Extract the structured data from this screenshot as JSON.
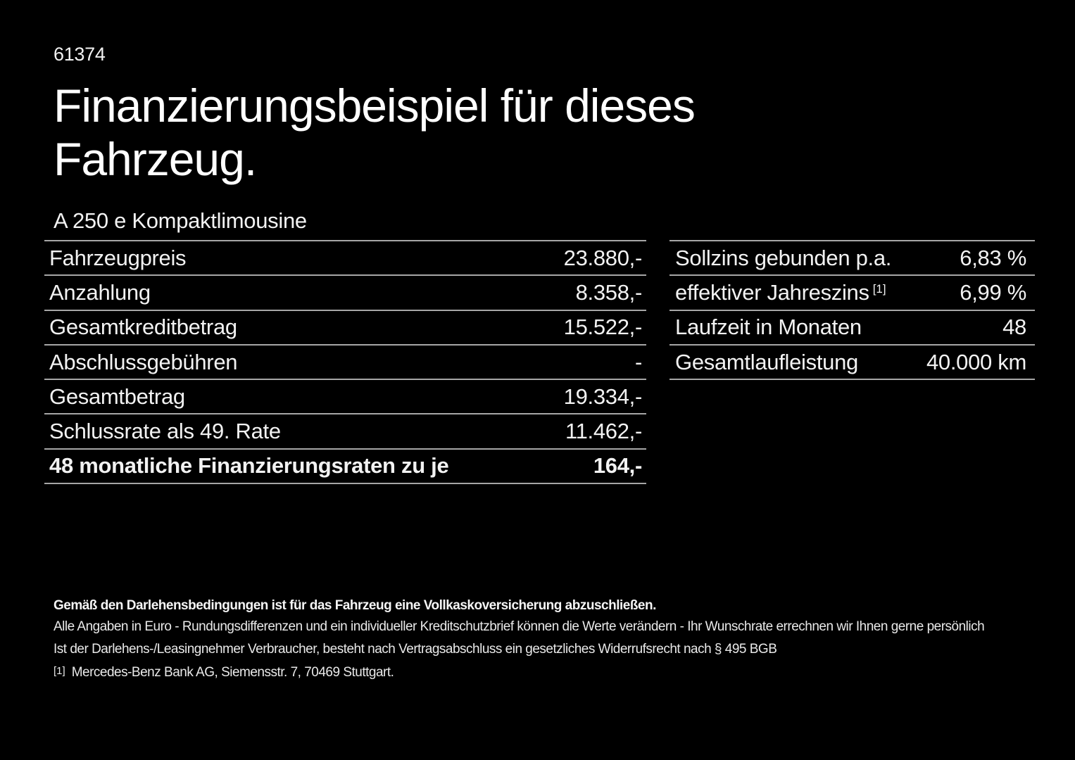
{
  "page": {
    "background_color": "#000000",
    "text_color": "#f2f2f2",
    "divider_color": "#a6a6a6"
  },
  "header": {
    "doc_number": "61374",
    "title": "Finanzierungsbeispiel für dieses Fahrzeug.",
    "vehicle_model": "A 250 e Kompaktlimousine"
  },
  "left_table": {
    "rows": [
      {
        "label": "Fahrzeugpreis",
        "value": "23.880,-"
      },
      {
        "label": "Anzahlung",
        "value": "8.358,-"
      },
      {
        "label": "Gesamtkreditbetrag",
        "value": "15.522,-"
      },
      {
        "label": "Abschlussgebühren",
        "value": "-"
      },
      {
        "label": "Gesamtbetrag",
        "value": "19.334,-"
      },
      {
        "label": "Schlussrate als 49. Rate",
        "value": "11.462,-"
      },
      {
        "label": "48 monatliche Finanzierungsraten zu je",
        "value": "164,-"
      }
    ]
  },
  "right_table": {
    "rows": [
      {
        "label": "Sollzins gebunden p.a.",
        "value": "6,83 %"
      },
      {
        "label": "effektiver Jahreszins",
        "footnote_mark": "[1]",
        "value": "6,99 %"
      },
      {
        "label": "Laufzeit in Monaten",
        "value": "48"
      },
      {
        "label": "Gesamtlaufleistung",
        "value": "40.000 km"
      }
    ]
  },
  "footer": {
    "insurance_note": "Gemäß den Darlehensbedingungen ist für das Fahrzeug eine Vollkaskoversicherung abzuschließen.",
    "rounding_note": "Alle Angaben in Euro - Rundungsdifferenzen und ein individueller Kreditschutzbrief können die Werte verändern - Ihr Wunschrate errechnen wir Ihnen gerne persönlich",
    "withdrawal_note": "Ist der Darlehens-/Leasingnehmer Verbraucher, besteht nach Vertragsabschluss ein gesetzliches Widerrufsrecht nach § 495 BGB",
    "footnote_mark": "[1]",
    "footnote_text": "Mercedes-Benz Bank AG, Siemensstr. 7, 70469 Stuttgart."
  }
}
